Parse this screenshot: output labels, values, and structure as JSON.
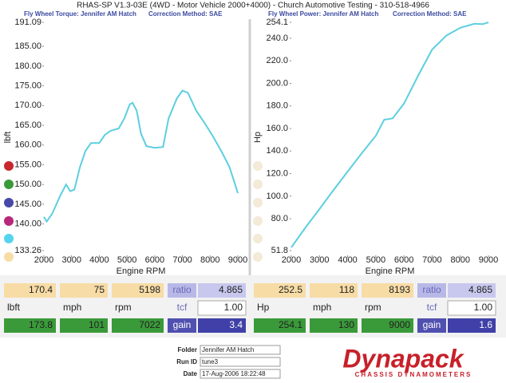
{
  "header": {
    "title": "RHAS-SP V1.3-03E  (4WD - Motor Vehicle 2000+4000) - Church Automotive Testing - 310-518-4966",
    "left_subtitle": "Fly Wheel Torque: Jennifer AM Hatch",
    "left_method": "Correction Method: SAE",
    "right_subtitle": "Fly Wheel Power: Jennifer AM Hatch",
    "right_method": "Correction Method: SAE"
  },
  "chart_data": [
    {
      "type": "line",
      "y_label": "lbft",
      "x_label": "Engine RPM",
      "color": "#5ccfe0",
      "x": [
        2000,
        2100,
        2300,
        2600,
        2800,
        2950,
        3100,
        3300,
        3500,
        3700,
        4000,
        4200,
        4400,
        4700,
        4900,
        5100,
        5200,
        5350,
        5500,
        5700,
        6000,
        6300,
        6500,
        6800,
        7000,
        7200,
        7500,
        7800,
        8100,
        8400,
        8700,
        9000
      ],
      "values": [
        141.8,
        140.6,
        142.6,
        147.3,
        150.0,
        148.3,
        148.7,
        154.4,
        158.5,
        160.5,
        160.5,
        162.6,
        163.6,
        164.2,
        166.7,
        170.3,
        170.7,
        168.7,
        163.0,
        159.7,
        159.3,
        159.5,
        166.7,
        171.8,
        173.8,
        173.2,
        168.7,
        165.6,
        162.2,
        158.5,
        154.4,
        147.8
      ],
      "xlim": [
        2000,
        9000
      ],
      "xticks": [
        2000,
        3000,
        4000,
        5000,
        6000,
        7000,
        8000,
        9000
      ],
      "ylim": [
        133.26,
        191.09
      ],
      "yticks": [
        {
          "value": 133.26,
          "label": "133.26"
        },
        {
          "value": 140,
          "label": "140.00"
        },
        {
          "value": 145,
          "label": "145.00"
        },
        {
          "value": 150,
          "label": "150.00"
        },
        {
          "value": 155,
          "label": "155.00"
        },
        {
          "value": 160,
          "label": "160.00"
        },
        {
          "value": 165,
          "label": "165.00"
        },
        {
          "value": 170,
          "label": "170.00"
        },
        {
          "value": 175,
          "label": "175.00"
        },
        {
          "value": 180,
          "label": "180.00"
        },
        {
          "value": 185,
          "label": "185.00"
        },
        {
          "value": 191.09,
          "label": "191.09"
        }
      ]
    },
    {
      "type": "line",
      "y_label": "Hp",
      "x_label": "Engine RPM",
      "color": "#5ccfe0",
      "x": [
        2000,
        2500,
        3000,
        3500,
        4000,
        4500,
        5000,
        5300,
        5600,
        6000,
        6500,
        7000,
        7500,
        8000,
        8500,
        8800,
        9000
      ],
      "values": [
        54.6,
        72.0,
        88.6,
        105.5,
        121.8,
        138.0,
        153.6,
        167.8,
        169.0,
        182.0,
        206.7,
        230.0,
        242.3,
        249.3,
        252.8,
        252.5,
        254.1
      ],
      "xlim": [
        2000,
        9000
      ],
      "xticks": [
        2000,
        3000,
        4000,
        5000,
        6000,
        7000,
        8000,
        9000
      ],
      "ylim": [
        51.8,
        254.1
      ],
      "yticks": [
        {
          "value": 51.8,
          "label": "51.8"
        },
        {
          "value": 80,
          "label": "80.0"
        },
        {
          "value": 100,
          "label": "100.0"
        },
        {
          "value": 120,
          "label": "120.0"
        },
        {
          "value": 140,
          "label": "140.0"
        },
        {
          "value": 160,
          "label": "160.0"
        },
        {
          "value": 180,
          "label": "180.0"
        },
        {
          "value": 200,
          "label": "200.0"
        },
        {
          "value": 220,
          "label": "220.0"
        },
        {
          "value": 240,
          "label": "240.0"
        },
        {
          "value": 254.1,
          "label": "254.1"
        }
      ]
    }
  ],
  "tables": [
    {
      "rows": [
        [
          "170.4",
          "75",
          "5198",
          "ratio",
          "4.865"
        ],
        [
          "lbft",
          "mph",
          "rpm",
          "tcf",
          "1.00"
        ],
        [
          "173.8",
          "101",
          "7022",
          "gain",
          "3.4"
        ]
      ]
    },
    {
      "rows": [
        [
          "252.5",
          "118",
          "8193",
          "ratio",
          "4.865"
        ],
        [
          "Hp",
          "mph",
          "rpm",
          "tcf",
          "1.00"
        ],
        [
          "254.1",
          "130",
          "9000",
          "gain",
          "1.6"
        ]
      ]
    }
  ],
  "footer": {
    "folder_label": "Folder",
    "folder": "Jennifer AM Hatch",
    "run_label": "Run ID",
    "run": "tune3",
    "date_label": "Date",
    "date": "17-Aug-2006  18:22:48",
    "logo": "Dynapack",
    "logo_sub": "CHASSIS DYNAMOMETERS"
  }
}
